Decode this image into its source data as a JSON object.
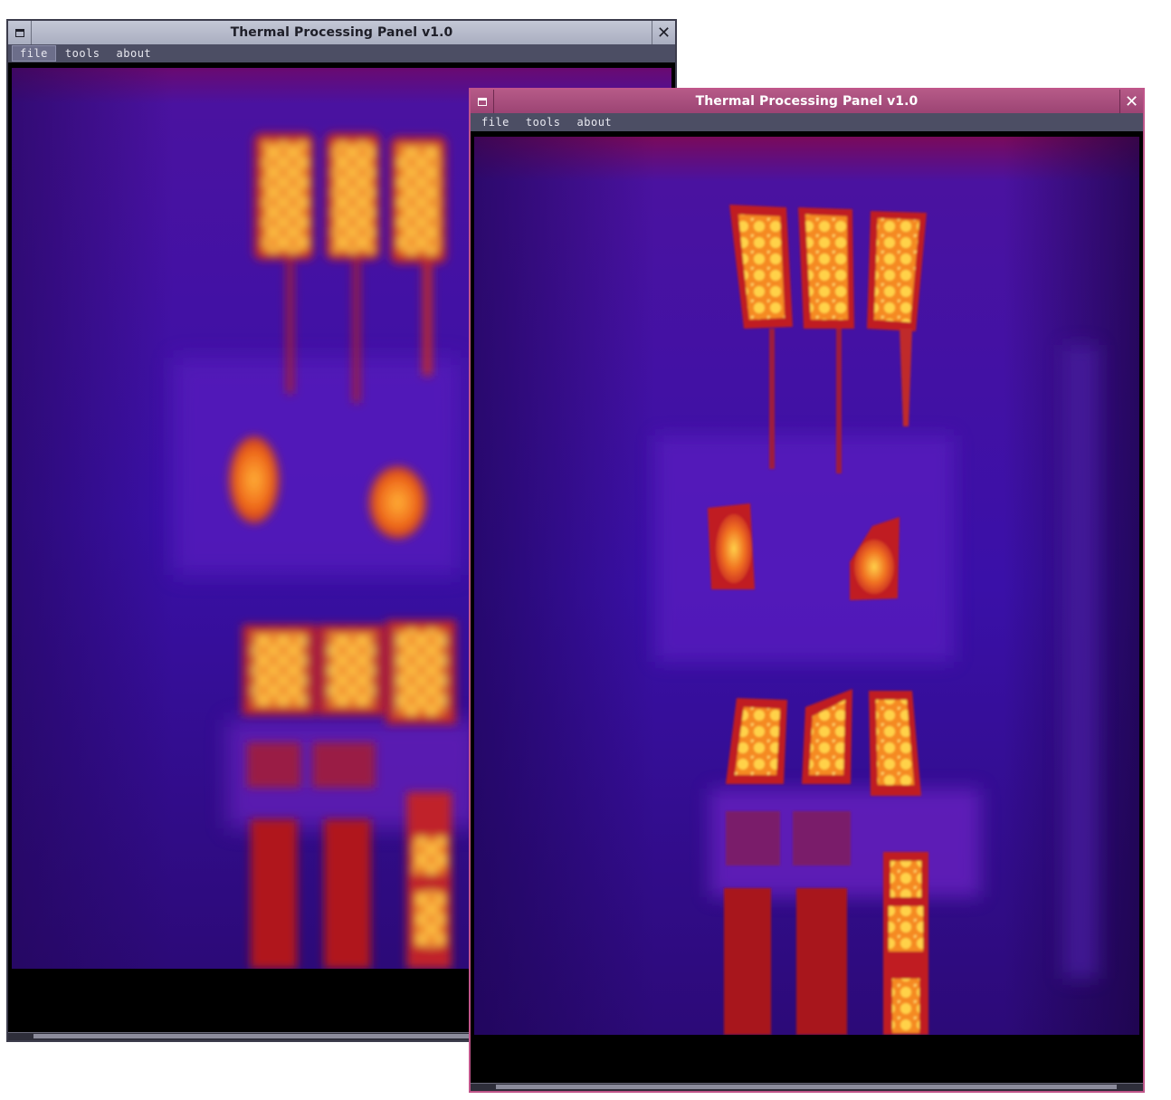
{
  "windows": [
    {
      "id": "back",
      "title": "Thermal Processing Panel v1.0",
      "menu": [
        "file",
        "tools",
        "about"
      ],
      "active_menu": "file"
    },
    {
      "id": "front",
      "title": "Thermal Processing Panel v1.0",
      "menu": [
        "file",
        "tools",
        "about"
      ],
      "active_menu": ""
    }
  ],
  "icons": {
    "restore": "window-restore-icon",
    "close": "close-icon"
  },
  "colors": {
    "front_titlebar": "#b65a87",
    "back_titlebar": "#b4b8c8",
    "menubar": "#4c4e64",
    "thermal_cold": "#3a0aa0",
    "thermal_hot": "#ffd040"
  },
  "glyphs": {
    "close": "✕"
  }
}
